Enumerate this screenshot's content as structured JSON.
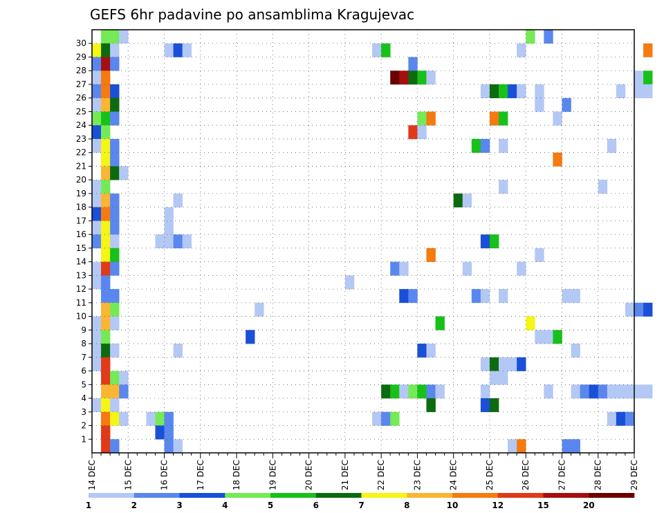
{
  "chart_data": {
    "type": "heatmap",
    "title": "GEFS 6hr padavine po ansamblima Kragujevac",
    "x_tick_labels": [
      "14 DEC",
      "15 DEC",
      "16 DEC",
      "17 DEC",
      "18 DEC",
      "19 DEC",
      "20 DEC",
      "21 DEC",
      "22 DEC",
      "23 DEC",
      "24 DEC",
      "25 DEC",
      "26 DEC",
      "27 DEC",
      "28 DEC",
      "29 DEC"
    ],
    "x_step": "6hr",
    "y_tick_labels": [
      1,
      2,
      3,
      4,
      5,
      6,
      7,
      8,
      9,
      10,
      11,
      12,
      13,
      14,
      15,
      16,
      17,
      18,
      19,
      20,
      21,
      22,
      23,
      24,
      25,
      26,
      27,
      28,
      29,
      30
    ],
    "ensemble_rows": 31,
    "grid": true,
    "colorbar": {
      "placement": "bottom",
      "levels": [
        "1",
        "2",
        "3",
        "4",
        "5",
        "6",
        "7",
        "8",
        "10",
        "12",
        "15",
        "20"
      ],
      "colors": [
        "#b4c8f5",
        "#5a87ee",
        "#1a4fd8",
        "#74ea56",
        "#17c11a",
        "#0c6b0f",
        "#f5f516",
        "#fab533",
        "#f57a10",
        "#e03a18",
        "#a50f0f",
        "#6a0000"
      ]
    },
    "cells": [
      {
        "m": 30,
        "t": 1,
        "c": 3
      },
      {
        "m": 30,
        "t": 2,
        "c": 3
      },
      {
        "m": 30,
        "t": 3,
        "c": 0
      },
      {
        "m": 30,
        "t": 48,
        "c": 3
      },
      {
        "m": 30,
        "t": 50,
        "c": 1
      },
      {
        "m": 29,
        "t": 0,
        "c": 6
      },
      {
        "m": 29,
        "t": 1,
        "c": 5
      },
      {
        "m": 29,
        "t": 2,
        "c": 0
      },
      {
        "m": 29,
        "t": 8,
        "c": 0
      },
      {
        "m": 29,
        "t": 9,
        "c": 2
      },
      {
        "m": 29,
        "t": 10,
        "c": 0
      },
      {
        "m": 29,
        "t": 31,
        "c": 0
      },
      {
        "m": 29,
        "t": 32,
        "c": 4
      },
      {
        "m": 29,
        "t": 47,
        "c": 0
      },
      {
        "m": 29,
        "t": 61,
        "c": 8
      },
      {
        "m": 28,
        "t": 0,
        "c": 1
      },
      {
        "m": 28,
        "t": 1,
        "c": 10
      },
      {
        "m": 28,
        "t": 2,
        "c": 1
      },
      {
        "m": 28,
        "t": 35,
        "c": 1
      },
      {
        "m": 27,
        "t": 0,
        "c": 0
      },
      {
        "m": 27,
        "t": 1,
        "c": 8
      },
      {
        "m": 27,
        "t": 33,
        "c": 11
      },
      {
        "m": 27,
        "t": 34,
        "c": 10
      },
      {
        "m": 27,
        "t": 35,
        "c": 5
      },
      {
        "m": 27,
        "t": 36,
        "c": 4
      },
      {
        "m": 27,
        "t": 37,
        "c": 0
      },
      {
        "m": 27,
        "t": 60,
        "c": 0
      },
      {
        "m": 27,
        "t": 61,
        "c": 4
      },
      {
        "m": 26,
        "t": 0,
        "c": 1
      },
      {
        "m": 26,
        "t": 1,
        "c": 8
      },
      {
        "m": 26,
        "t": 2,
        "c": 2
      },
      {
        "m": 26,
        "t": 43,
        "c": 0
      },
      {
        "m": 26,
        "t": 44,
        "c": 5
      },
      {
        "m": 26,
        "t": 45,
        "c": 4
      },
      {
        "m": 26,
        "t": 46,
        "c": 2
      },
      {
        "m": 26,
        "t": 47,
        "c": 0
      },
      {
        "m": 26,
        "t": 49,
        "c": 0
      },
      {
        "m": 26,
        "t": 58,
        "c": 0
      },
      {
        "m": 26,
        "t": 60,
        "c": 0
      },
      {
        "m": 26,
        "t": 61,
        "c": 0
      },
      {
        "m": 25,
        "t": 0,
        "c": 0
      },
      {
        "m": 25,
        "t": 1,
        "c": 7
      },
      {
        "m": 25,
        "t": 2,
        "c": 5
      },
      {
        "m": 25,
        "t": 49,
        "c": 0
      },
      {
        "m": 25,
        "t": 52,
        "c": 1
      },
      {
        "m": 24,
        "t": 0,
        "c": 3
      },
      {
        "m": 24,
        "t": 1,
        "c": 4
      },
      {
        "m": 24,
        "t": 2,
        "c": 1
      },
      {
        "m": 24,
        "t": 36,
        "c": 3
      },
      {
        "m": 24,
        "t": 37,
        "c": 8
      },
      {
        "m": 24,
        "t": 44,
        "c": 8
      },
      {
        "m": 24,
        "t": 45,
        "c": 4
      },
      {
        "m": 24,
        "t": 51,
        "c": 0
      },
      {
        "m": 23,
        "t": 0,
        "c": 2
      },
      {
        "m": 23,
        "t": 1,
        "c": 3
      },
      {
        "m": 23,
        "t": 35,
        "c": 9
      },
      {
        "m": 23,
        "t": 36,
        "c": 0
      },
      {
        "m": 22,
        "t": 0,
        "c": 0
      },
      {
        "m": 22,
        "t": 1,
        "c": 6
      },
      {
        "m": 22,
        "t": 2,
        "c": 1
      },
      {
        "m": 22,
        "t": 42,
        "c": 4
      },
      {
        "m": 22,
        "t": 43,
        "c": 1
      },
      {
        "m": 22,
        "t": 45,
        "c": 0
      },
      {
        "m": 22,
        "t": 57,
        "c": 0
      },
      {
        "m": 21,
        "t": 1,
        "c": 6
      },
      {
        "m": 21,
        "t": 2,
        "c": 1
      },
      {
        "m": 21,
        "t": 51,
        "c": 8
      },
      {
        "m": 20,
        "t": 1,
        "c": 7
      },
      {
        "m": 20,
        "t": 2,
        "c": 5
      },
      {
        "m": 20,
        "t": 3,
        "c": 0
      },
      {
        "m": 19,
        "t": 0,
        "c": 0
      },
      {
        "m": 19,
        "t": 1,
        "c": 3
      },
      {
        "m": 19,
        "t": 45,
        "c": 0
      },
      {
        "m": 19,
        "t": 56,
        "c": 0
      },
      {
        "m": 18,
        "t": 0,
        "c": 0
      },
      {
        "m": 18,
        "t": 1,
        "c": 7
      },
      {
        "m": 18,
        "t": 2,
        "c": 1
      },
      {
        "m": 18,
        "t": 9,
        "c": 0
      },
      {
        "m": 18,
        "t": 40,
        "c": 5
      },
      {
        "m": 18,
        "t": 41,
        "c": 0
      },
      {
        "m": 17,
        "t": 0,
        "c": 2
      },
      {
        "m": 17,
        "t": 1,
        "c": 8
      },
      {
        "m": 17,
        "t": 2,
        "c": 1
      },
      {
        "m": 17,
        "t": 8,
        "c": 0
      },
      {
        "m": 16,
        "t": 0,
        "c": 0
      },
      {
        "m": 16,
        "t": 1,
        "c": 6
      },
      {
        "m": 16,
        "t": 2,
        "c": 1
      },
      {
        "m": 16,
        "t": 8,
        "c": 0
      },
      {
        "m": 15,
        "t": 0,
        "c": 1
      },
      {
        "m": 15,
        "t": 1,
        "c": 6
      },
      {
        "m": 15,
        "t": 2,
        "c": 0
      },
      {
        "m": 15,
        "t": 7,
        "c": 0
      },
      {
        "m": 15,
        "t": 8,
        "c": 0
      },
      {
        "m": 15,
        "t": 9,
        "c": 1
      },
      {
        "m": 15,
        "t": 10,
        "c": 0
      },
      {
        "m": 15,
        "t": 43,
        "c": 2
      },
      {
        "m": 15,
        "t": 44,
        "c": 4
      },
      {
        "m": 14,
        "t": 1,
        "c": 6
      },
      {
        "m": 14,
        "t": 2,
        "c": 4
      },
      {
        "m": 14,
        "t": 37,
        "c": 8
      },
      {
        "m": 14,
        "t": 49,
        "c": 0
      },
      {
        "m": 13,
        "t": 0,
        "c": 0
      },
      {
        "m": 13,
        "t": 1,
        "c": 9
      },
      {
        "m": 13,
        "t": 2,
        "c": 1
      },
      {
        "m": 13,
        "t": 33,
        "c": 1
      },
      {
        "m": 13,
        "t": 34,
        "c": 0
      },
      {
        "m": 13,
        "t": 41,
        "c": 0
      },
      {
        "m": 13,
        "t": 47,
        "c": 0
      },
      {
        "m": 12,
        "t": 0,
        "c": 0
      },
      {
        "m": 12,
        "t": 1,
        "c": 1
      },
      {
        "m": 12,
        "t": 28,
        "c": 0
      },
      {
        "m": 11,
        "t": 1,
        "c": 1
      },
      {
        "m": 11,
        "t": 2,
        "c": 1
      },
      {
        "m": 11,
        "t": 34,
        "c": 2
      },
      {
        "m": 11,
        "t": 35,
        "c": 1
      },
      {
        "m": 11,
        "t": 42,
        "c": 1
      },
      {
        "m": 11,
        "t": 43,
        "c": 0
      },
      {
        "m": 11,
        "t": 45,
        "c": 0
      },
      {
        "m": 11,
        "t": 52,
        "c": 0
      },
      {
        "m": 11,
        "t": 53,
        "c": 0
      },
      {
        "m": 10,
        "t": 1,
        "c": 7
      },
      {
        "m": 10,
        "t": 2,
        "c": 3
      },
      {
        "m": 10,
        "t": 18,
        "c": 0
      },
      {
        "m": 10,
        "t": 59,
        "c": 0
      },
      {
        "m": 10,
        "t": 60,
        "c": 1
      },
      {
        "m": 10,
        "t": 61,
        "c": 2
      },
      {
        "m": 9,
        "t": 0,
        "c": 0
      },
      {
        "m": 9,
        "t": 1,
        "c": 7
      },
      {
        "m": 9,
        "t": 2,
        "c": 0
      },
      {
        "m": 9,
        "t": 38,
        "c": 4
      },
      {
        "m": 9,
        "t": 48,
        "c": 6
      },
      {
        "m": 8,
        "t": 0,
        "c": 0
      },
      {
        "m": 8,
        "t": 1,
        "c": 3
      },
      {
        "m": 8,
        "t": 17,
        "c": 2
      },
      {
        "m": 8,
        "t": 49,
        "c": 0
      },
      {
        "m": 8,
        "t": 50,
        "c": 0
      },
      {
        "m": 8,
        "t": 51,
        "c": 4
      },
      {
        "m": 7,
        "t": 0,
        "c": 0
      },
      {
        "m": 7,
        "t": 1,
        "c": 5
      },
      {
        "m": 7,
        "t": 2,
        "c": 0
      },
      {
        "m": 7,
        "t": 9,
        "c": 0
      },
      {
        "m": 7,
        "t": 36,
        "c": 2
      },
      {
        "m": 7,
        "t": 37,
        "c": 0
      },
      {
        "m": 7,
        "t": 53,
        "c": 0
      },
      {
        "m": 6,
        "t": 0,
        "c": 0
      },
      {
        "m": 6,
        "t": 1,
        "c": 9
      },
      {
        "m": 6,
        "t": 43,
        "c": 0
      },
      {
        "m": 6,
        "t": 44,
        "c": 5
      },
      {
        "m": 6,
        "t": 45,
        "c": 0
      },
      {
        "m": 6,
        "t": 46,
        "c": 0
      },
      {
        "m": 6,
        "t": 47,
        "c": 2
      },
      {
        "m": 5,
        "t": 1,
        "c": 9
      },
      {
        "m": 5,
        "t": 2,
        "c": 3
      },
      {
        "m": 5,
        "t": 3,
        "c": 0
      },
      {
        "m": 5,
        "t": 44,
        "c": 0
      },
      {
        "m": 5,
        "t": 45,
        "c": 0
      },
      {
        "m": 4,
        "t": 1,
        "c": 7
      },
      {
        "m": 4,
        "t": 2,
        "c": 7
      },
      {
        "m": 4,
        "t": 3,
        "c": 1
      },
      {
        "m": 4,
        "t": 32,
        "c": 5
      },
      {
        "m": 4,
        "t": 33,
        "c": 4
      },
      {
        "m": 4,
        "t": 34,
        "c": 0
      },
      {
        "m": 4,
        "t": 35,
        "c": 3
      },
      {
        "m": 4,
        "t": 36,
        "c": 4
      },
      {
        "m": 4,
        "t": 37,
        "c": 1
      },
      {
        "m": 4,
        "t": 38,
        "c": 0
      },
      {
        "m": 4,
        "t": 43,
        "c": 0
      },
      {
        "m": 4,
        "t": 50,
        "c": 0
      },
      {
        "m": 4,
        "t": 53,
        "c": 0
      },
      {
        "m": 4,
        "t": 54,
        "c": 1
      },
      {
        "m": 4,
        "t": 55,
        "c": 2
      },
      {
        "m": 4,
        "t": 56,
        "c": 1
      },
      {
        "m": 4,
        "t": 57,
        "c": 0
      },
      {
        "m": 4,
        "t": 58,
        "c": 0
      },
      {
        "m": 4,
        "t": 59,
        "c": 0
      },
      {
        "m": 4,
        "t": 60,
        "c": 0
      },
      {
        "m": 4,
        "t": 61,
        "c": 0
      },
      {
        "m": 3,
        "t": 0,
        "c": 0
      },
      {
        "m": 3,
        "t": 1,
        "c": 6
      },
      {
        "m": 3,
        "t": 2,
        "c": 0
      },
      {
        "m": 3,
        "t": 37,
        "c": 5
      },
      {
        "m": 3,
        "t": 43,
        "c": 2
      },
      {
        "m": 3,
        "t": 44,
        "c": 5
      },
      {
        "m": 2,
        "t": 1,
        "c": 8
      },
      {
        "m": 2,
        "t": 2,
        "c": 6
      },
      {
        "m": 2,
        "t": 3,
        "c": 0
      },
      {
        "m": 2,
        "t": 6,
        "c": 0
      },
      {
        "m": 2,
        "t": 7,
        "c": 3
      },
      {
        "m": 2,
        "t": 8,
        "c": 1
      },
      {
        "m": 2,
        "t": 31,
        "c": 0
      },
      {
        "m": 2,
        "t": 32,
        "c": 1
      },
      {
        "m": 2,
        "t": 33,
        "c": 3
      },
      {
        "m": 2,
        "t": 57,
        "c": 0
      },
      {
        "m": 2,
        "t": 58,
        "c": 2
      },
      {
        "m": 2,
        "t": 59,
        "c": 1
      },
      {
        "m": 1,
        "t": 1,
        "c": 9
      },
      {
        "m": 1,
        "t": 7,
        "c": 2
      },
      {
        "m": 1,
        "t": 8,
        "c": 1
      },
      {
        "m": 0,
        "t": 1,
        "c": 9
      },
      {
        "m": 0,
        "t": 2,
        "c": 1
      },
      {
        "m": 0,
        "t": 8,
        "c": 1
      },
      {
        "m": 0,
        "t": 9,
        "c": 0
      },
      {
        "m": 0,
        "t": 46,
        "c": 0
      },
      {
        "m": 0,
        "t": 47,
        "c": 8
      },
      {
        "m": 0,
        "t": 52,
        "c": 1
      },
      {
        "m": 0,
        "t": 53,
        "c": 1
      }
    ]
  }
}
